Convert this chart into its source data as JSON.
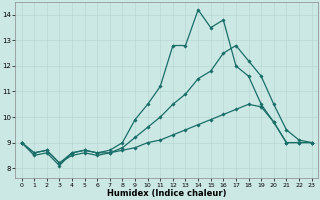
{
  "title": "",
  "xlabel": "Humidex (Indice chaleur)",
  "xlim": [
    -0.5,
    23.5
  ],
  "ylim": [
    7.6,
    14.5
  ],
  "yticks": [
    8,
    9,
    10,
    11,
    12,
    13,
    14
  ],
  "xticks": [
    0,
    1,
    2,
    3,
    4,
    5,
    6,
    7,
    8,
    9,
    10,
    11,
    12,
    13,
    14,
    15,
    16,
    17,
    18,
    19,
    20,
    21,
    22,
    23
  ],
  "bg_color": "#cce8e4",
  "line_color": "#1a6e68",
  "grid_color": "#b8d8d4",
  "series": [
    {
      "x": [
        0,
        1,
        2,
        3,
        4,
        5,
        6,
        7,
        8,
        9,
        10,
        11,
        12,
        13,
        14,
        15,
        16,
        17,
        18,
        19,
        20,
        21,
        22,
        23
      ],
      "y": [
        9.0,
        8.5,
        8.6,
        8.1,
        8.6,
        8.7,
        8.6,
        8.7,
        9.0,
        9.9,
        10.5,
        11.2,
        12.8,
        12.8,
        14.2,
        13.5,
        13.8,
        12.0,
        11.6,
        10.5,
        9.8,
        9.0,
        9.0,
        9.0
      ]
    },
    {
      "x": [
        0,
        1,
        2,
        3,
        4,
        5,
        6,
        7,
        8,
        9,
        10,
        11,
        12,
        13,
        14,
        15,
        16,
        17,
        18,
        19,
        20,
        21,
        22,
        23
      ],
      "y": [
        9.0,
        8.6,
        8.7,
        8.2,
        8.6,
        8.7,
        8.6,
        8.6,
        8.8,
        9.2,
        9.6,
        10.0,
        10.5,
        10.9,
        11.5,
        11.8,
        12.5,
        12.8,
        12.2,
        11.6,
        10.5,
        9.5,
        9.1,
        9.0
      ]
    },
    {
      "x": [
        0,
        1,
        2,
        3,
        4,
        5,
        6,
        7,
        8,
        9,
        10,
        11,
        12,
        13,
        14,
        15,
        16,
        17,
        18,
        19,
        20,
        21,
        22,
        23
      ],
      "y": [
        9.0,
        8.6,
        8.7,
        8.2,
        8.5,
        8.6,
        8.5,
        8.6,
        8.7,
        8.8,
        9.0,
        9.1,
        9.3,
        9.5,
        9.7,
        9.9,
        10.1,
        10.3,
        10.5,
        10.4,
        9.8,
        9.0,
        9.0,
        9.0
      ]
    }
  ]
}
